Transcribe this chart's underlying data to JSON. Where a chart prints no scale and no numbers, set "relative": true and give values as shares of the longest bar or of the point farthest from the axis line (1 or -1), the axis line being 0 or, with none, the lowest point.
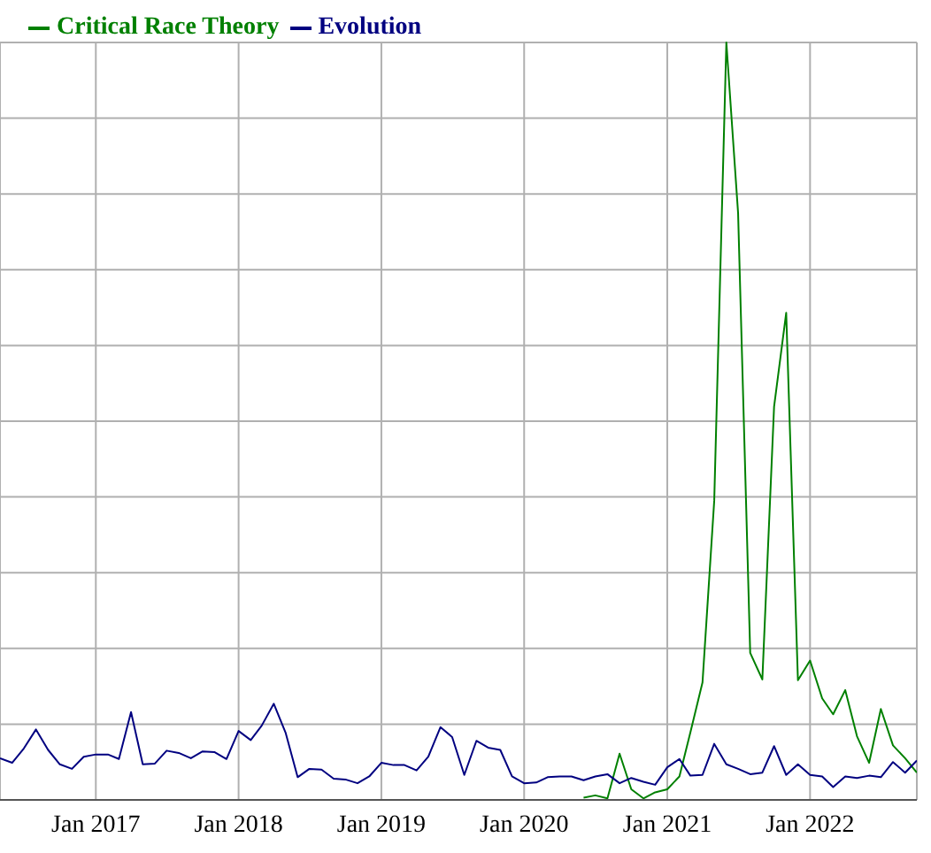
{
  "chart_data": {
    "type": "line",
    "relative": true,
    "grid": true,
    "legend": "top left",
    "marker": "none",
    "line_style": "solid",
    "xlim": [
      "2016-05",
      "2022-10"
    ],
    "xticks": [
      {
        "value": "2017-01",
        "label": "Jan 2017"
      },
      {
        "value": "2018-01",
        "label": "Jan 2018"
      },
      {
        "value": "2019-01",
        "label": "Jan 2019"
      },
      {
        "value": "2020-01",
        "label": "Jan 2020"
      },
      {
        "value": "2021-01",
        "label": "Jan 2021"
      },
      {
        "value": "2022-01",
        "label": "Jan 2022"
      }
    ],
    "x": [
      "2016-05",
      "2016-06",
      "2016-07",
      "2016-08",
      "2016-09",
      "2016-10",
      "2016-11",
      "2016-12",
      "2017-01",
      "2017-02",
      "2017-03",
      "2017-04",
      "2017-05",
      "2017-06",
      "2017-07",
      "2017-08",
      "2017-09",
      "2017-10",
      "2017-11",
      "2017-12",
      "2018-01",
      "2018-02",
      "2018-03",
      "2018-04",
      "2018-05",
      "2018-06",
      "2018-07",
      "2018-08",
      "2018-09",
      "2018-10",
      "2018-11",
      "2018-12",
      "2019-01",
      "2019-02",
      "2019-03",
      "2019-04",
      "2019-05",
      "2019-06",
      "2019-07",
      "2019-08",
      "2019-09",
      "2019-10",
      "2019-11",
      "2019-12",
      "2020-01",
      "2020-02",
      "2020-03",
      "2020-04",
      "2020-05",
      "2020-06",
      "2020-07",
      "2020-08",
      "2020-09",
      "2020-10",
      "2020-11",
      "2020-12",
      "2021-01",
      "2021-02",
      "2021-03",
      "2021-04",
      "2021-05",
      "2021-06",
      "2021-07",
      "2021-08",
      "2021-09",
      "2021-10",
      "2021-11",
      "2021-12",
      "2022-01",
      "2022-02",
      "2022-03",
      "2022-04",
      "2022-05",
      "2022-06",
      "2022-07",
      "2022-08",
      "2022-09",
      "2022-10"
    ],
    "series": [
      {
        "name": "Critical Race Theory",
        "color": "#008000",
        "values": [
          null,
          null,
          null,
          null,
          null,
          null,
          null,
          null,
          null,
          null,
          null,
          null,
          null,
          null,
          null,
          null,
          null,
          null,
          null,
          null,
          null,
          null,
          null,
          null,
          null,
          null,
          null,
          null,
          null,
          null,
          null,
          null,
          null,
          null,
          null,
          null,
          null,
          null,
          null,
          null,
          null,
          null,
          null,
          null,
          null,
          null,
          null,
          null,
          null,
          0.003,
          0.006,
          0.002,
          0.061,
          0.014,
          0.002,
          0.01,
          0.014,
          0.031,
          0.089,
          0.155,
          0.395,
          1,
          0.775,
          0.194,
          0.159,
          0.519,
          0.643,
          0.158,
          0.184,
          0.134,
          0.113,
          0.145,
          0.084,
          0.049,
          0.12,
          0.072,
          0.055,
          0.036
        ]
      },
      {
        "name": "Evolution",
        "color": "#000080",
        "values": [
          0.055,
          0.049,
          0.068,
          0.093,
          0.066,
          0.047,
          0.041,
          0.057,
          0.06,
          0.06,
          0.054,
          0.116,
          0.047,
          0.048,
          0.065,
          0.062,
          0.055,
          0.064,
          0.063,
          0.054,
          0.091,
          0.079,
          0.098,
          0.127,
          0.089,
          0.03,
          0.041,
          0.04,
          0.028,
          0.027,
          0.022,
          0.031,
          0.049,
          0.046,
          0.046,
          0.039,
          0.057,
          0.096,
          0.083,
          0.033,
          0.078,
          0.069,
          0.066,
          0.031,
          0.022,
          0.023,
          0.03,
          0.031,
          0.031,
          0.026,
          0.031,
          0.034,
          0.022,
          0.029,
          0.024,
          0.02,
          0.043,
          0.054,
          0.032,
          0.033,
          0.074,
          0.047,
          0.041,
          0.034,
          0.036,
          0.071,
          0.033,
          0.047,
          0.033,
          0.031,
          0.017,
          0.031,
          0.029,
          0.032,
          0.03,
          0.05,
          0.036,
          0.052
        ]
      }
    ]
  }
}
